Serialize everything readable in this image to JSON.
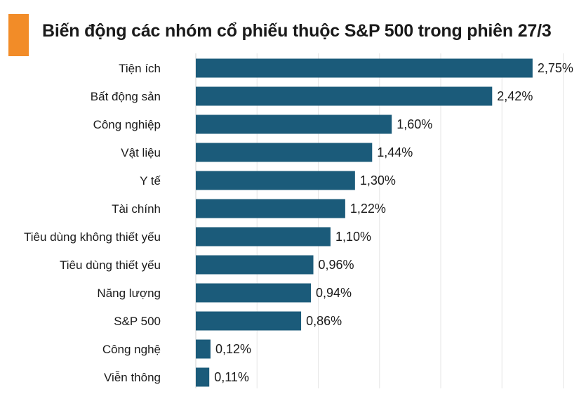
{
  "chart_data": {
    "type": "bar",
    "orientation": "horizontal",
    "title": "Biến động các nhóm cổ phiếu thuộc S&P 500 trong phiên 27/3",
    "categories": [
      "Tiện ích",
      "Bất động sản",
      "Công nghiệp",
      "Vật liệu",
      "Y tế",
      "Tài chính",
      "Tiêu dùng không thiết yếu",
      "Tiêu dùng thiết yếu",
      "Năng lượng",
      "S&P 500",
      "Công nghệ",
      "Viễn thông"
    ],
    "values": [
      2.75,
      2.42,
      1.6,
      1.44,
      1.3,
      1.22,
      1.1,
      0.96,
      0.94,
      0.86,
      0.12,
      0.11
    ],
    "value_labels": [
      "2,75%",
      "2,42%",
      "1,60%",
      "1,44%",
      "1,30%",
      "1,22%",
      "1,10%",
      "0,96%",
      "0,94%",
      "0,86%",
      "0,12%",
      "0,11%"
    ],
    "xlim": [
      0,
      3.0
    ],
    "grid": true,
    "bar_color": "#1b5b7a",
    "accent_color": "#f28c28"
  }
}
